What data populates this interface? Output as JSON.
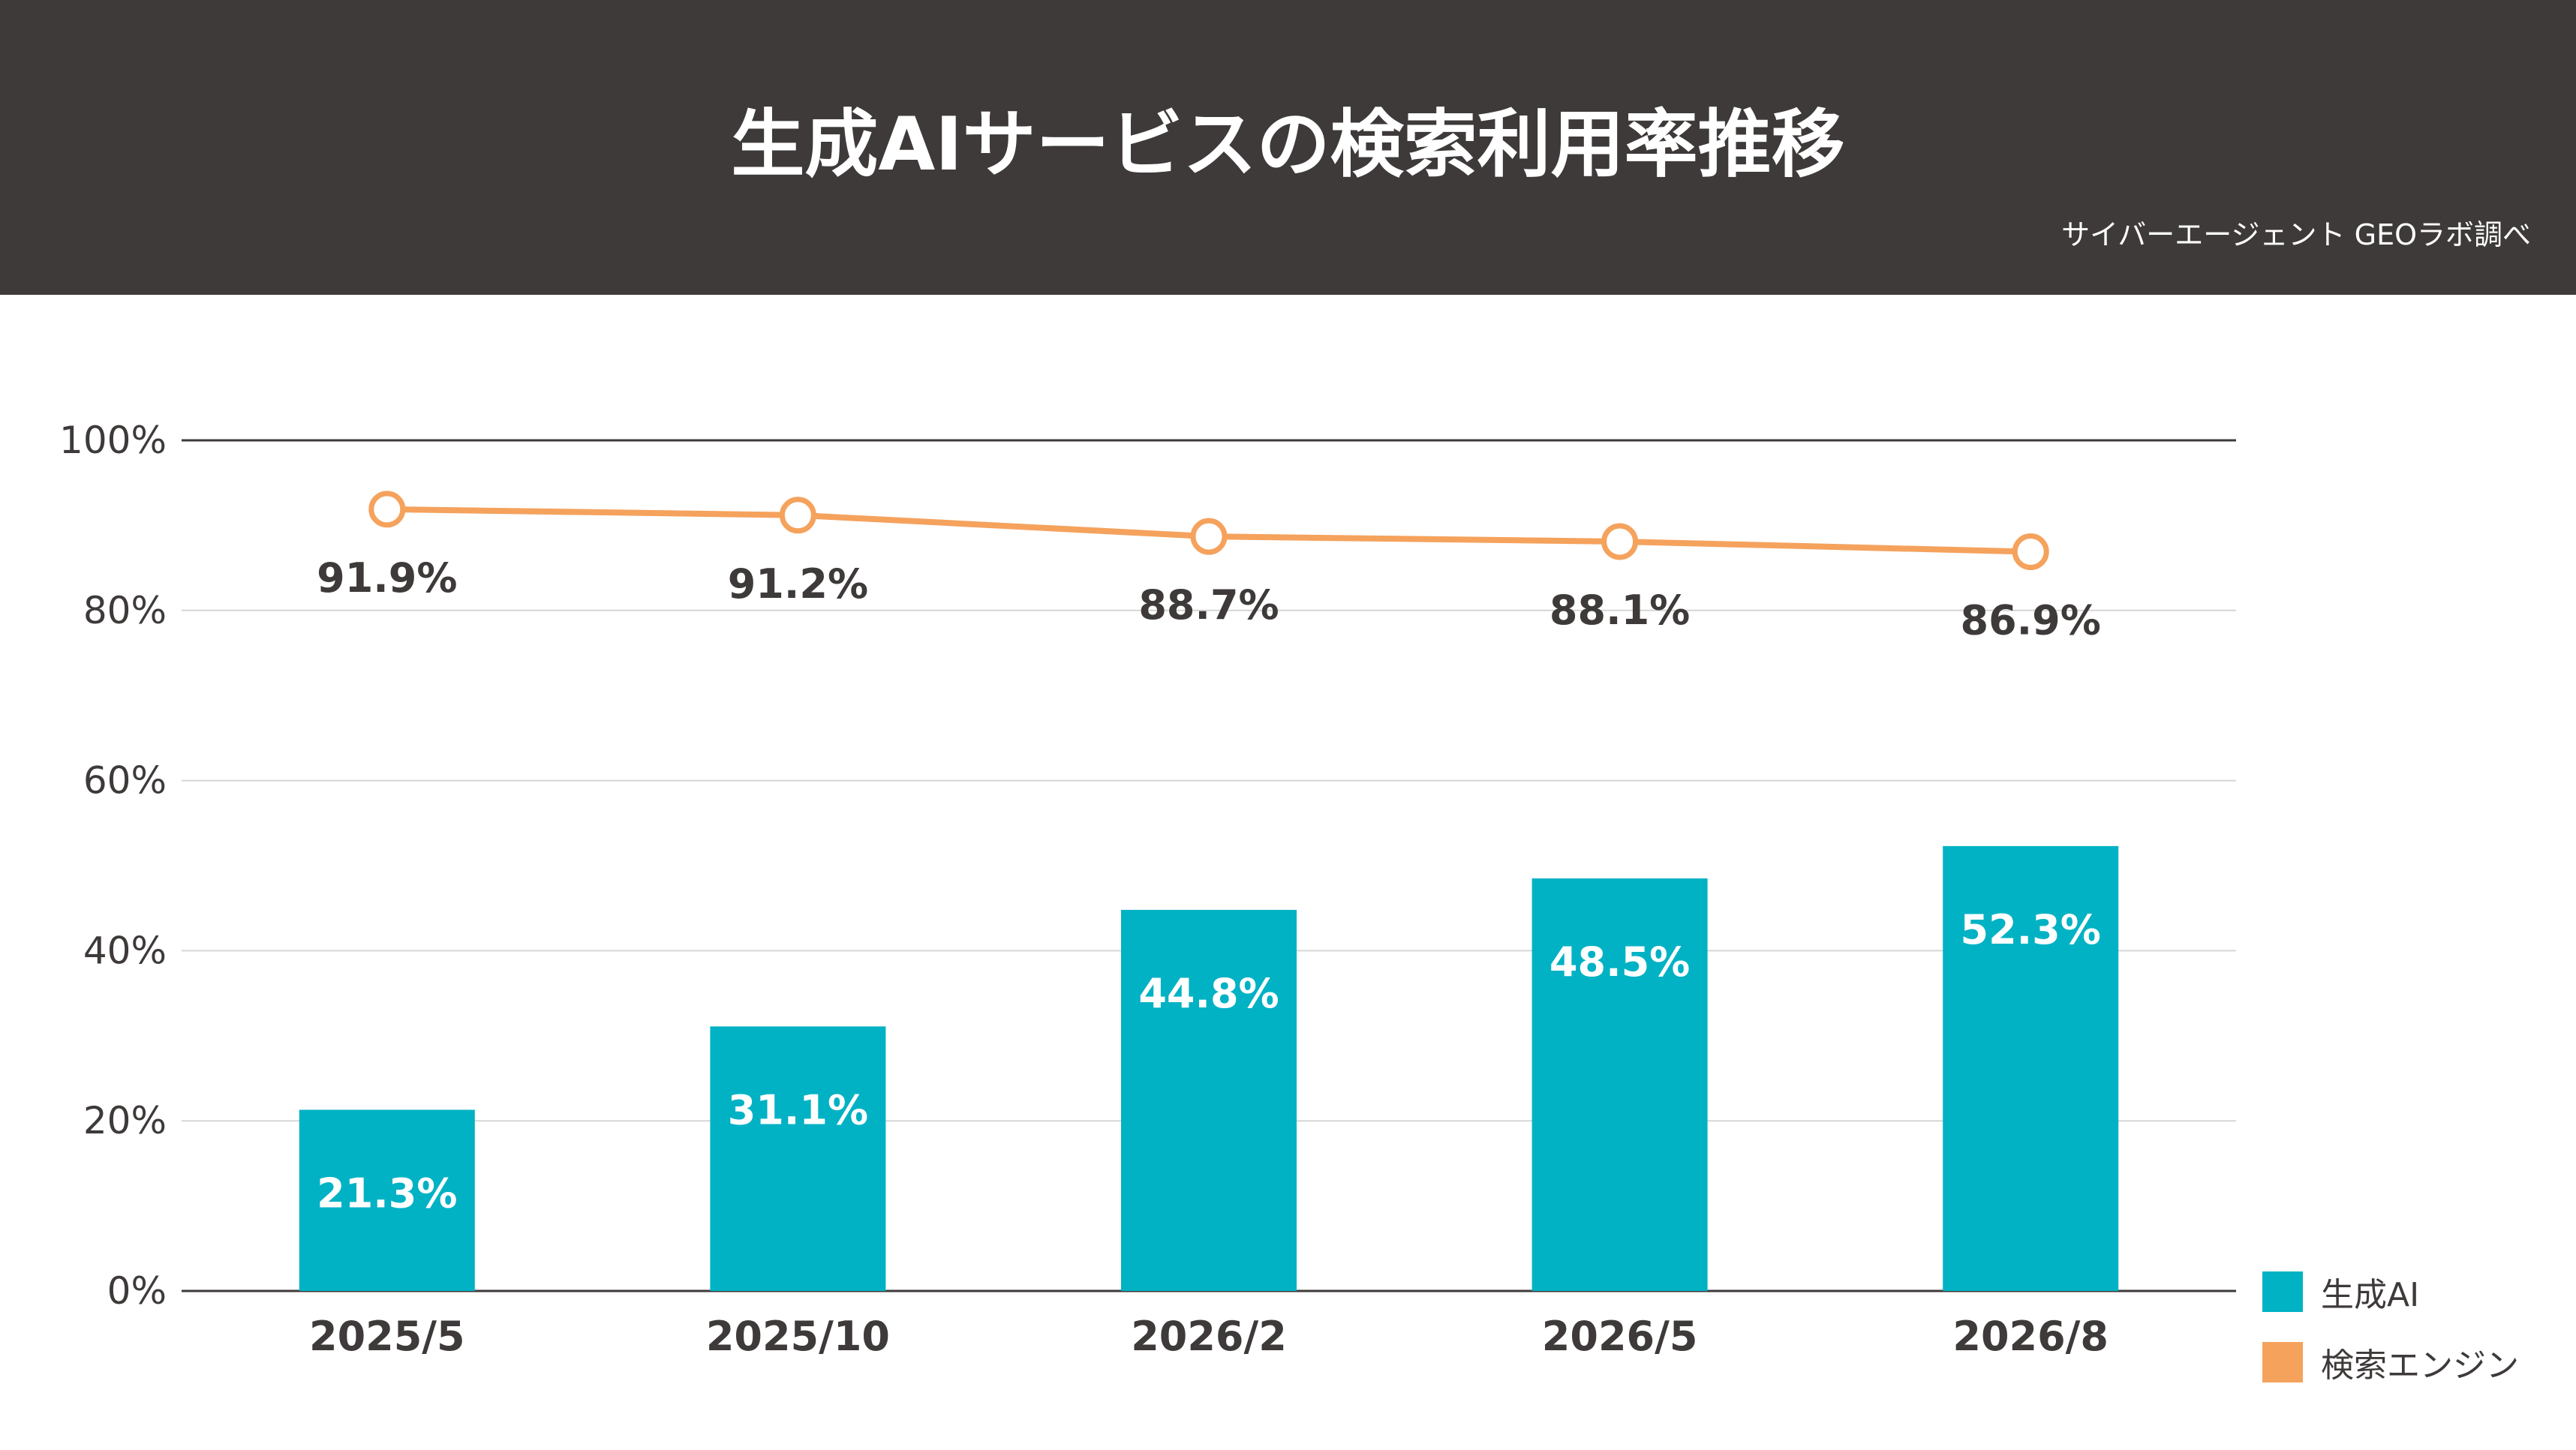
{
  "header": {
    "title": "生成AIサービスの検索利用率推移",
    "source": "サイバーエージェント GEOラボ調べ"
  },
  "colors": {
    "header_bg": "#3e3a39",
    "bar": "#00b2c4",
    "line": "#f5a25d",
    "text": "#3e3a39",
    "grid": "#d6d6d6",
    "axis": "#3e3a39"
  },
  "chart_data": {
    "type": "bar",
    "title": "生成AIサービスの検索利用率推移",
    "categories": [
      "2025/5",
      "2025/10",
      "2026/2",
      "2026/5",
      "2026/8"
    ],
    "ylim": [
      0,
      100
    ],
    "yticks": [
      0,
      20,
      40,
      60,
      80,
      100
    ],
    "ytick_labels": [
      "0%",
      "20%",
      "40%",
      "60%",
      "80%",
      "100%"
    ],
    "grid": true,
    "legend_position": "bottom-right",
    "series": [
      {
        "name": "生成AI",
        "type": "bar",
        "values": [
          21.3,
          31.1,
          44.8,
          48.5,
          52.3
        ],
        "labels": [
          "21.3%",
          "31.1%",
          "44.8%",
          "48.5%",
          "52.3%"
        ]
      },
      {
        "name": "検索エンジン",
        "type": "line",
        "values": [
          91.9,
          91.2,
          88.7,
          88.1,
          86.9
        ],
        "labels": [
          "91.9%",
          "91.2%",
          "88.7%",
          "88.1%",
          "86.9%"
        ]
      }
    ]
  },
  "legend": {
    "items": [
      {
        "label": "生成AI",
        "color": "#00b2c4"
      },
      {
        "label": "検索エンジン",
        "color": "#f5a25d"
      }
    ]
  }
}
